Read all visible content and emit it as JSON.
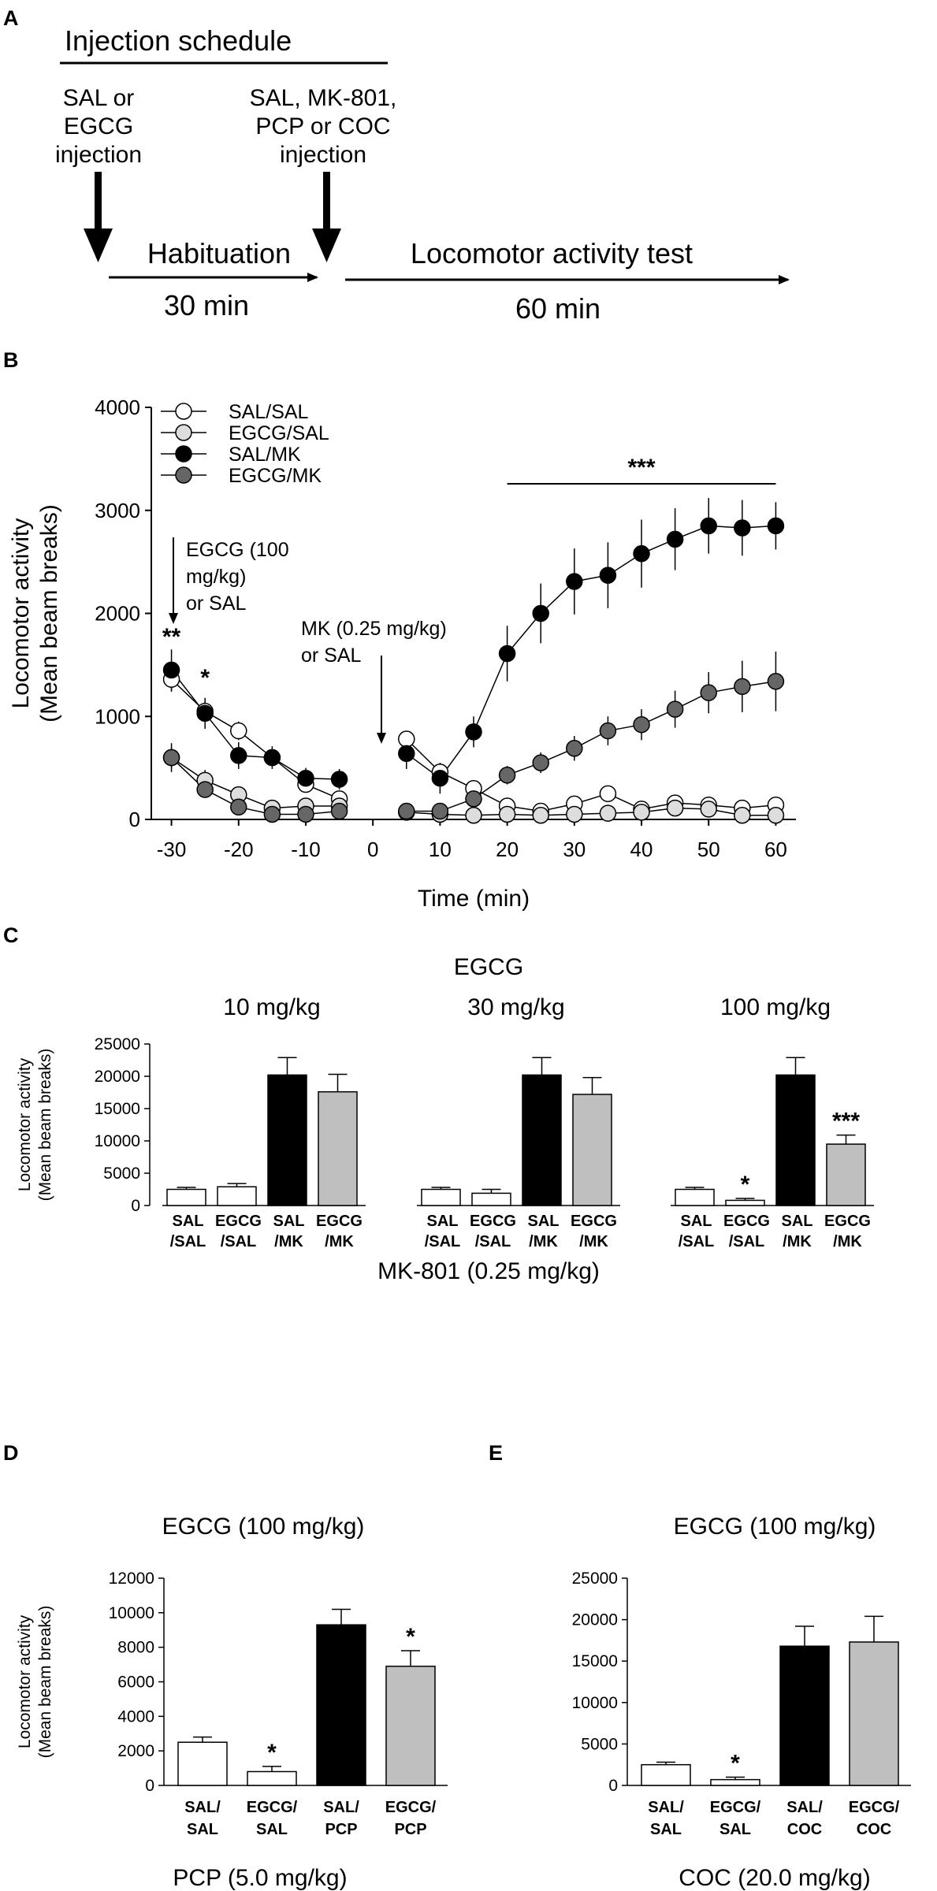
{
  "panel_a": {
    "letter": "A",
    "title": "Injection schedule",
    "first_inj": [
      "SAL or",
      "EGCG",
      "injection"
    ],
    "second_inj": [
      "SAL, MK-801,",
      "PCP or COC",
      "injection"
    ],
    "hab_label": "Habituation",
    "hab_time": "30 min",
    "test_label": "Locomotor activity test",
    "test_time": "60 min"
  },
  "panel_c_header": {
    "letter": "C",
    "drug": "EGCG",
    "doses": [
      "10 mg/kg",
      "30 mg/kg",
      "100 mg/kg"
    ]
  },
  "panel_d_letter": "D",
  "panel_e_letter": "E",
  "colors": {
    "sal": "#ffffff",
    "egcg_sal": "#dddddd",
    "sal_mk": "#000000",
    "egcg_mk": "#666666",
    "bar_gray": "#bfbfbf"
  },
  "chart_data": [
    {
      "id": "B",
      "letter": "B",
      "type": "line",
      "title": "",
      "xlabel": "Time (min)",
      "ylabel": [
        "Locomotor activity",
        "(Mean beam breaks)"
      ],
      "xlim": [
        -33,
        63
      ],
      "ylim": [
        0,
        4000
      ],
      "xticks": [
        -30,
        -20,
        -10,
        0,
        10,
        20,
        30,
        40,
        50,
        60
      ],
      "yticks": [
        0,
        1000,
        2000,
        3000,
        4000
      ],
      "legend_position": "top-left",
      "series": [
        {
          "name": "SAL/SAL",
          "color": "#ffffff",
          "pre": {
            "x": [
              -30,
              -25,
              -20,
              -15,
              -10,
              -5
            ],
            "y": [
              1360,
              1050,
              860,
              600,
              340,
              200
            ],
            "err": [
              120,
              100,
              90,
              80,
              60,
              60
            ]
          },
          "post": {
            "x": [
              5,
              10,
              15,
              20,
              25,
              30,
              35,
              40,
              45,
              50,
              55,
              60
            ],
            "y": [
              780,
              460,
              300,
              130,
              80,
              150,
              250,
              100,
              160,
              140,
              110,
              140
            ],
            "err": [
              70,
              60,
              50,
              30,
              30,
              30,
              40,
              30,
              30,
              30,
              30,
              30
            ]
          }
        },
        {
          "name": "EGCG/SAL",
          "color": "#dddddd",
          "pre": {
            "x": [
              -30,
              -25,
              -20,
              -15,
              -10,
              -5
            ],
            "y": [
              600,
              380,
              240,
              110,
              130,
              130
            ],
            "err": [
              140,
              100,
              60,
              40,
              40,
              40
            ]
          },
          "post": {
            "x": [
              5,
              10,
              15,
              20,
              25,
              30,
              35,
              40,
              45,
              50,
              55,
              60
            ],
            "y": [
              70,
              50,
              40,
              50,
              40,
              50,
              60,
              70,
              110,
              100,
              40,
              40
            ],
            "err": [
              20,
              20,
              20,
              20,
              20,
              20,
              20,
              20,
              20,
              20,
              20,
              20
            ]
          }
        },
        {
          "name": "SAL/MK",
          "color": "#000000",
          "pre": {
            "x": [
              -30,
              -25,
              -20,
              -15,
              -10,
              -5
            ],
            "y": [
              1450,
              1030,
              620,
              600,
              400,
              390
            ],
            "err": [
              200,
              150,
              130,
              110,
              100,
              100
            ]
          },
          "post": {
            "x": [
              5,
              10,
              15,
              20,
              25,
              30,
              35,
              40,
              45,
              50,
              55,
              60
            ],
            "y": [
              640,
              400,
              850,
              1610,
              2000,
              2310,
              2370,
              2580,
              2720,
              2850,
              2830,
              2850
            ],
            "err": [
              150,
              150,
              150,
              270,
              290,
              320,
              320,
              330,
              300,
              270,
              270,
              230
            ]
          }
        },
        {
          "name": "EGCG/MK",
          "color": "#666666",
          "pre": {
            "x": [
              -30,
              -25,
              -20,
              -15,
              -10,
              -5
            ],
            "y": [
              600,
              290,
              120,
              50,
              50,
              80
            ],
            "err": [
              100,
              70,
              50,
              30,
              30,
              30
            ]
          },
          "post": {
            "x": [
              5,
              10,
              15,
              20,
              25,
              30,
              35,
              40,
              45,
              50,
              55,
              60
            ],
            "y": [
              80,
              80,
              200,
              430,
              550,
              690,
              860,
              920,
              1070,
              1230,
              1290,
              1340
            ],
            "err": [
              20,
              20,
              50,
              90,
              100,
              120,
              140,
              150,
              180,
              200,
              250,
              290
            ]
          }
        }
      ],
      "annotations": {
        "egcg_arrow": [
          "EGCG (100",
          "mg/kg)",
          "or SAL"
        ],
        "mk_arrow": [
          "MK (0.25 mg/kg)",
          "or SAL"
        ],
        "sig_minus30": "**",
        "sig_minus25": "*",
        "sig_range": "***",
        "sig_range_x": [
          20,
          60
        ]
      }
    },
    {
      "id": "C",
      "type": "bar",
      "title": "",
      "xlabel": "MK-801 (0.25 mg/kg)",
      "ylabel": [
        "Locomotor activity",
        "(Mean beam breaks)"
      ],
      "ylim": [
        0,
        25000
      ],
      "yticks": [
        0,
        5000,
        10000,
        15000,
        20000,
        25000
      ],
      "groups": [
        {
          "name": "10 mg/kg",
          "categories": [
            [
              "SAL",
              "/SAL"
            ],
            [
              "EGCG",
              "/SAL"
            ],
            [
              "SAL",
              "/MK"
            ],
            [
              "EGCG",
              "/MK"
            ]
          ],
          "values": [
            2500,
            2900,
            20200,
            17600
          ],
          "errors": [
            300,
            500,
            2700,
            2700
          ],
          "sig": [
            "",
            "",
            "",
            ""
          ]
        },
        {
          "name": "30 mg/kg",
          "categories": [
            [
              "SAL",
              "/SAL"
            ],
            [
              "EGCG",
              "/SAL"
            ],
            [
              "SAL",
              "/MK"
            ],
            [
              "EGCG",
              "/MK"
            ]
          ],
          "values": [
            2500,
            1900,
            20200,
            17200
          ],
          "errors": [
            300,
            600,
            2700,
            2600
          ],
          "sig": [
            "",
            "",
            "",
            ""
          ]
        },
        {
          "name": "100 mg/kg",
          "categories": [
            [
              "SAL",
              "/SAL"
            ],
            [
              "EGCG",
              "/SAL"
            ],
            [
              "SAL",
              "/MK"
            ],
            [
              "EGCG",
              "/MK"
            ]
          ],
          "values": [
            2500,
            800,
            20200,
            9500
          ],
          "errors": [
            300,
            300,
            2700,
            1400
          ],
          "sig": [
            "",
            "*",
            "",
            "***"
          ]
        }
      ]
    },
    {
      "id": "D",
      "type": "bar",
      "title": "EGCG (100 mg/kg)",
      "xlabel": "PCP (5.0 mg/kg)",
      "ylabel": [
        "Locomotor activity",
        "(Mean beam breaks)"
      ],
      "ylim": [
        0,
        12000
      ],
      "yticks": [
        0,
        2000,
        4000,
        6000,
        8000,
        10000,
        12000
      ],
      "categories": [
        [
          "SAL/",
          "SAL"
        ],
        [
          "EGCG/",
          "SAL"
        ],
        [
          "SAL/",
          "PCP"
        ],
        [
          "EGCG/",
          "PCP"
        ]
      ],
      "values": [
        2500,
        800,
        9300,
        6900
      ],
      "errors": [
        300,
        300,
        900,
        900
      ],
      "sig": [
        "",
        "*",
        "",
        "*"
      ]
    },
    {
      "id": "E",
      "type": "bar",
      "title": "EGCG (100 mg/kg)",
      "xlabel": "COC (20.0 mg/kg)",
      "ylabel": [
        "",
        ""
      ],
      "ylim": [
        0,
        25000
      ],
      "yticks": [
        0,
        5000,
        10000,
        15000,
        20000,
        25000
      ],
      "categories": [
        [
          "SAL/",
          "SAL"
        ],
        [
          "EGCG/",
          "SAL"
        ],
        [
          "SAL/",
          "COC"
        ],
        [
          "EGCG/",
          "COC"
        ]
      ],
      "values": [
        2500,
        700,
        16800,
        17300
      ],
      "errors": [
        300,
        300,
        2400,
        3100
      ],
      "sig": [
        "",
        "*",
        "",
        ""
      ]
    }
  ]
}
